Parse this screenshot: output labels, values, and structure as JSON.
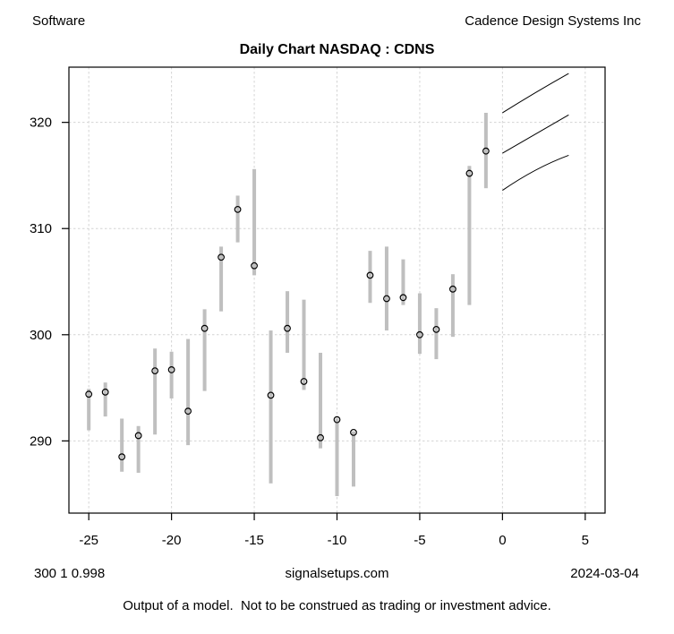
{
  "header": {
    "left": "Software",
    "right": "Cadence Design Systems Inc"
  },
  "title": "Daily Chart NASDAQ : CDNS",
  "footer": {
    "left": "300 1 0.998",
    "center": "signalsetups.com",
    "right": "2024-03-04",
    "disclaimer": "Output of a model.  Not to be construed as trading or investment advice."
  },
  "chart_data": {
    "type": "bar",
    "subtype": "high-low-close-range-bars-with-forecast-fan",
    "title": "Daily Chart NASDAQ : CDNS",
    "xlabel": "",
    "ylabel": "",
    "xlim": [
      -26.2,
      6.2
    ],
    "ylim": [
      283.2,
      325.2
    ],
    "x_ticks": [
      -25,
      -20,
      -15,
      -10,
      -5,
      0,
      5
    ],
    "y_ticks": [
      290,
      300,
      310,
      320
    ],
    "grid": true,
    "bars": [
      {
        "x": -25,
        "high": 294.9,
        "low": 291.0,
        "close": 294.4
      },
      {
        "x": -24,
        "high": 295.5,
        "low": 292.3,
        "close": 294.6
      },
      {
        "x": -23,
        "high": 292.1,
        "low": 287.1,
        "close": 288.5
      },
      {
        "x": -22,
        "high": 291.4,
        "low": 287.0,
        "close": 290.5
      },
      {
        "x": -21,
        "high": 298.7,
        "low": 290.6,
        "close": 296.6
      },
      {
        "x": -20,
        "high": 298.4,
        "low": 294.0,
        "close": 296.7
      },
      {
        "x": -19,
        "high": 299.6,
        "low": 289.6,
        "close": 292.8
      },
      {
        "x": -18,
        "high": 302.4,
        "low": 294.7,
        "close": 300.6
      },
      {
        "x": -17,
        "high": 308.3,
        "low": 302.2,
        "close": 307.3
      },
      {
        "x": -16,
        "high": 313.1,
        "low": 308.7,
        "close": 311.8
      },
      {
        "x": -15,
        "high": 315.6,
        "low": 305.6,
        "close": 306.5
      },
      {
        "x": -14,
        "high": 300.4,
        "low": 286.0,
        "close": 294.3
      },
      {
        "x": -13,
        "high": 304.1,
        "low": 298.3,
        "close": 300.6
      },
      {
        "x": -12,
        "high": 303.3,
        "low": 294.8,
        "close": 295.6
      },
      {
        "x": -11,
        "high": 298.3,
        "low": 289.3,
        "close": 290.3
      },
      {
        "x": -10,
        "high": 292.1,
        "low": 284.8,
        "close": 292.0
      },
      {
        "x": -9,
        "high": 290.9,
        "low": 285.7,
        "close": 290.8
      },
      {
        "x": -8,
        "high": 307.9,
        "low": 303.0,
        "close": 305.6
      },
      {
        "x": -7,
        "high": 308.3,
        "low": 300.4,
        "close": 303.4
      },
      {
        "x": -6,
        "high": 307.1,
        "low": 302.8,
        "close": 303.5
      },
      {
        "x": -5,
        "high": 303.9,
        "low": 298.2,
        "close": 300.0
      },
      {
        "x": -4,
        "high": 302.5,
        "low": 297.7,
        "close": 300.5
      },
      {
        "x": -3,
        "high": 305.7,
        "low": 299.8,
        "close": 304.3
      },
      {
        "x": -2,
        "high": 315.9,
        "low": 302.8,
        "close": 315.2
      },
      {
        "x": -1,
        "high": 320.9,
        "low": 313.8,
        "close": 317.3
      }
    ],
    "forecast_lines": [
      {
        "name": "upper",
        "points": [
          [
            0,
            320.9
          ],
          [
            2,
            322.8
          ],
          [
            4,
            324.6
          ]
        ]
      },
      {
        "name": "middle",
        "points": [
          [
            0,
            317.1
          ],
          [
            2,
            318.9
          ],
          [
            4,
            320.7
          ]
        ]
      },
      {
        "name": "lower",
        "points": [
          [
            0,
            313.6
          ],
          [
            2,
            315.5
          ],
          [
            4,
            316.9
          ]
        ]
      }
    ],
    "legend": [],
    "colors": {
      "bar": "#bfbfbf",
      "marker_stroke": "#000000",
      "forecast_line": "#000000",
      "grid": "#d4d4d4",
      "axis": "#000000"
    }
  }
}
